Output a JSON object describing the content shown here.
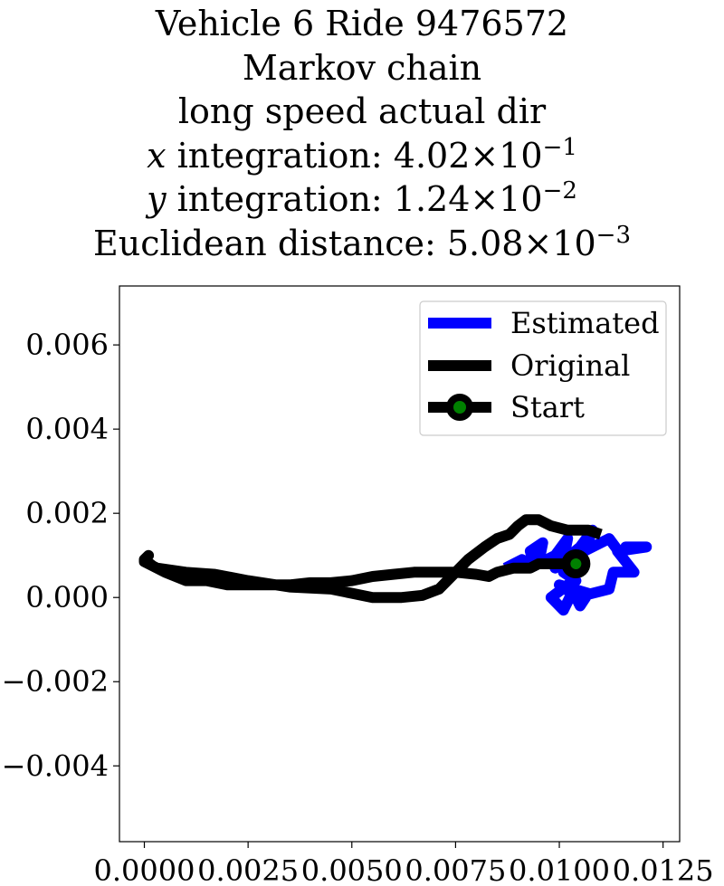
{
  "title": {
    "line1": "Vehicle 6 Ride 9476572",
    "line2": "Markov chain",
    "line3": "long speed actual dir",
    "line4": {
      "var": "x",
      "text": " integration: 4.02×10",
      "exp": "−1"
    },
    "line5": {
      "var": "y",
      "text": " integration: 1.24×10",
      "exp": "−2"
    },
    "line6": {
      "text": "Euclidean distance: 5.08×10",
      "exp": "−3"
    }
  },
  "chart_data": {
    "type": "line",
    "xlim": [
      -0.0006,
      0.0129
    ],
    "ylim": [
      -0.0058,
      0.0074
    ],
    "x_ticks": [
      {
        "value": 0.0,
        "label": "0.0000"
      },
      {
        "value": 0.0025,
        "label": "0.0025"
      },
      {
        "value": 0.005,
        "label": "0.0050"
      },
      {
        "value": 0.0075,
        "label": "0.0075"
      },
      {
        "value": 0.01,
        "label": "0.0100"
      },
      {
        "value": 0.0125,
        "label": "0.0125"
      }
    ],
    "y_ticks": [
      {
        "value": 0.006,
        "label": "0.006"
      },
      {
        "value": 0.004,
        "label": "0.004"
      },
      {
        "value": 0.002,
        "label": "0.002"
      },
      {
        "value": 0.0,
        "label": "0.000"
      },
      {
        "value": -0.002,
        "label": "−0.002"
      },
      {
        "value": -0.004,
        "label": "−0.004"
      }
    ],
    "grid": false,
    "legend_position": "top-right",
    "series": [
      {
        "name": "Estimated",
        "color": "#0000ff",
        "points": [
          [
            0.0087,
            0.0007
          ],
          [
            0.0091,
            0.0009
          ],
          [
            0.0094,
            0.00075
          ],
          [
            0.0093,
            0.0011
          ],
          [
            0.0096,
            0.0013
          ],
          [
            0.0095,
            0.0008
          ],
          [
            0.0099,
            0.001
          ],
          [
            0.0102,
            0.0014
          ],
          [
            0.0101,
            0.0009
          ],
          [
            0.0099,
            0.0007
          ],
          [
            0.0105,
            0.0012
          ],
          [
            0.0108,
            0.0016
          ],
          [
            0.0106,
            0.0011
          ],
          [
            0.0112,
            0.0014
          ],
          [
            0.0115,
            0.001
          ],
          [
            0.0116,
            0.0012
          ],
          [
            0.0121,
            0.0012
          ],
          [
            0.0114,
            0.0011
          ],
          [
            0.0118,
            0.0006
          ],
          [
            0.0113,
            0.0006
          ],
          [
            0.0112,
            0.0002
          ],
          [
            0.0104,
            0.0
          ],
          [
            0.0105,
            -0.0002
          ],
          [
            0.0107,
            0.0001
          ],
          [
            0.01,
            0.0003
          ],
          [
            0.0103,
            0.0001
          ],
          [
            0.0101,
            -0.0003
          ],
          [
            0.0098,
            0.0
          ],
          [
            0.0102,
            0.0003
          ],
          [
            0.0104,
            0.0004
          ],
          [
            0.0101,
            0.0006
          ],
          [
            0.0103,
            0.0008
          ],
          [
            0.0105,
            0.001
          ],
          [
            0.0104,
            0.0008
          ]
        ]
      },
      {
        "name": "Original",
        "color": "#000000",
        "points": [
          [
            0.0104,
            0.0008
          ],
          [
            0.0095,
            0.0008
          ],
          [
            0.0093,
            0.0007
          ],
          [
            0.0089,
            0.0007
          ],
          [
            0.0085,
            0.0006
          ],
          [
            0.0083,
            0.0005
          ],
          [
            0.008,
            0.00055
          ],
          [
            0.0075,
            0.0006
          ],
          [
            0.007,
            0.0006
          ],
          [
            0.0065,
            0.0006
          ],
          [
            0.006,
            0.00055
          ],
          [
            0.0055,
            0.0005
          ],
          [
            0.005,
            0.0004
          ],
          [
            0.0045,
            0.00035
          ],
          [
            0.004,
            0.00035
          ],
          [
            0.0035,
            0.0003
          ],
          [
            0.003,
            0.0003
          ],
          [
            0.0025,
            0.0003
          ],
          [
            0.002,
            0.0003
          ],
          [
            0.0015,
            0.0004
          ],
          [
            0.001,
            0.0004
          ],
          [
            0.0005,
            0.0006
          ],
          [
            0.0002,
            0.00075
          ],
          [
            0.0,
            0.0009
          ],
          [
            0.0001,
            0.001
          ],
          [
            0.0,
            0.0009
          ],
          [
            0.0,
            0.00085
          ],
          [
            0.0003,
            0.0007
          ],
          [
            0.001,
            0.0006
          ],
          [
            0.0017,
            0.00055
          ],
          [
            0.0025,
            0.0004
          ],
          [
            0.0035,
            0.00025
          ],
          [
            0.0045,
            0.0002
          ],
          [
            0.0055,
            0.0
          ],
          [
            0.0062,
            0.0
          ],
          [
            0.0067,
            5e-05
          ],
          [
            0.0071,
            0.0002
          ],
          [
            0.0074,
            0.0005
          ],
          [
            0.0078,
            0.0009
          ],
          [
            0.0082,
            0.0012
          ],
          [
            0.0085,
            0.0014
          ],
          [
            0.0088,
            0.0015
          ],
          [
            0.009,
            0.0017
          ],
          [
            0.0092,
            0.00185
          ],
          [
            0.0095,
            0.00185
          ],
          [
            0.0098,
            0.0017
          ],
          [
            0.0102,
            0.0016
          ],
          [
            0.0107,
            0.0016
          ],
          [
            0.011,
            0.0015
          ]
        ]
      }
    ],
    "start_point": {
      "name": "Start",
      "x": 0.0104,
      "y": 0.0008,
      "marker_color": "#008000",
      "edge_color": "#000000"
    }
  }
}
